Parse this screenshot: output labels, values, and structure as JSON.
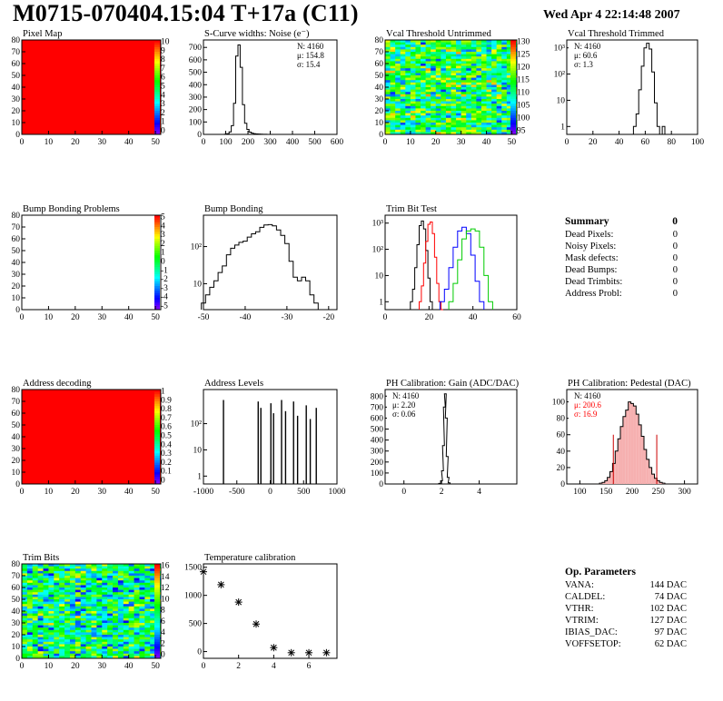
{
  "header": {
    "title": "M0715-070404.15:04 T+17a (C11)",
    "date": "Wed Apr  4 22:14:48 2007"
  },
  "summary": {
    "title": "Summary",
    "total": "0",
    "items": [
      {
        "label": "Dead Pixels:",
        "value": "0"
      },
      {
        "label": "Noisy Pixels:",
        "value": "0"
      },
      {
        "label": "Mask defects:",
        "value": "0"
      },
      {
        "label": "Dead Bumps:",
        "value": "0"
      },
      {
        "label": "Dead Trimbits:",
        "value": "0"
      },
      {
        "label": "Address Probl:",
        "value": "0"
      }
    ]
  },
  "op_parameters": {
    "title": "Op. Parameters",
    "items": [
      {
        "label": "VANA:",
        "value": "144 DAC"
      },
      {
        "label": "CALDEL:",
        "value": "74 DAC"
      },
      {
        "label": "VTHR:",
        "value": "102 DAC"
      },
      {
        "label": "VTRIM:",
        "value": "127 DAC"
      },
      {
        "label": "IBIAS_DAC:",
        "value": "97 DAC"
      },
      {
        "label": "VOFFSETOP:",
        "value": "62 DAC"
      }
    ]
  },
  "chart_data": [
    {
      "id": "pixel_map",
      "type": "heatmap",
      "title": "Pixel Map",
      "xlim": [
        0,
        52
      ],
      "ylim": [
        0,
        80
      ],
      "xticks": [
        0,
        10,
        20,
        30,
        40,
        50
      ],
      "yticks": [
        0,
        10,
        20,
        30,
        40,
        50,
        60,
        70,
        80
      ],
      "fill": "uniform",
      "color": "#ff0000",
      "palette_labels": [
        "10",
        "9",
        "8",
        "7",
        "6",
        "5",
        "4",
        "3",
        "2",
        "1",
        "0"
      ]
    },
    {
      "id": "scurve_noise",
      "type": "histogram",
      "title": "S-Curve widths: Noise (e⁻)",
      "xlim": [
        0,
        600
      ],
      "ylim": [
        0,
        760
      ],
      "xticks": [
        0,
        100,
        200,
        300,
        400,
        500,
        600
      ],
      "yticks": [
        0,
        100,
        200,
        300,
        400,
        500,
        600,
        700
      ],
      "x": [
        100,
        110,
        120,
        130,
        140,
        150,
        160,
        170,
        180,
        190,
        200,
        210,
        220,
        230,
        240,
        250,
        260,
        270,
        280,
        290,
        300
      ],
      "values": [
        2,
        6,
        20,
        70,
        250,
        630,
        720,
        540,
        240,
        90,
        40,
        18,
        10,
        6,
        4,
        3,
        2,
        1,
        1,
        0,
        0
      ],
      "stats": [
        "N: 4160",
        "μ: 154.8",
        "σ: 15.4"
      ]
    },
    {
      "id": "vcal_untrimmed",
      "type": "heatmap",
      "title": "Vcal Threshold Untrimmed",
      "xlim": [
        0,
        52
      ],
      "ylim": [
        0,
        80
      ],
      "xticks": [
        0,
        10,
        20,
        30,
        40,
        50
      ],
      "yticks": [
        0,
        10,
        20,
        30,
        40,
        50,
        60,
        70,
        80
      ],
      "fill": "noise",
      "mean_level": 0.5,
      "palette_labels": [
        "130",
        "125",
        "120",
        "115",
        "110",
        "105",
        "100",
        "95"
      ]
    },
    {
      "id": "vcal_trimmed",
      "type": "histogram",
      "title": "Vcal Threshold Trimmed",
      "xlim": [
        0,
        100
      ],
      "log": true,
      "ylim_log": [
        0.5,
        2000
      ],
      "xticks": [
        0,
        20,
        40,
        60,
        80,
        100
      ],
      "yticks": [
        1,
        10,
        100,
        1000
      ],
      "x": [
        52,
        54,
        56,
        58,
        60,
        62,
        64,
        66,
        68,
        70,
        72,
        74,
        76
      ],
      "values": [
        1,
        3,
        25,
        200,
        1000,
        1500,
        900,
        120,
        8,
        1,
        0,
        1,
        0
      ],
      "stats": [
        "N: 4160",
        "μ: 60.6",
        "σ:  1.3"
      ]
    },
    {
      "id": "bump_problems",
      "type": "heatmap",
      "title": "Bump Bonding Problems",
      "xlim": [
        0,
        52
      ],
      "ylim": [
        0,
        80
      ],
      "xticks": [
        0,
        10,
        20,
        30,
        40,
        50
      ],
      "yticks": [
        0,
        10,
        20,
        30,
        40,
        50,
        60,
        70,
        80
      ],
      "fill": "empty",
      "palette_labels": [
        "5",
        "4",
        "3",
        "2",
        "1",
        "0",
        "-1",
        "-2",
        "-3",
        "-4",
        "-5"
      ]
    },
    {
      "id": "bump_bonding",
      "type": "histogram",
      "title": "Bump Bonding",
      "xlim": [
        -50,
        -18
      ],
      "log": true,
      "ylim_log": [
        2,
        700
      ],
      "xticks": [
        -50,
        -40,
        -30,
        -20
      ],
      "yticks": [
        10,
        100
      ],
      "x": [
        -50,
        -49,
        -48,
        -47,
        -46,
        -45,
        -44,
        -43,
        -42,
        -41,
        -40,
        -39,
        -38,
        -37,
        -36,
        -35,
        -34,
        -33,
        -32,
        -31,
        -30,
        -29,
        -28,
        -27,
        -26,
        -25,
        -24,
        -23,
        -22,
        -21,
        -20
      ],
      "values": [
        3,
        5,
        8,
        12,
        20,
        30,
        60,
        90,
        110,
        130,
        140,
        180,
        220,
        250,
        330,
        380,
        390,
        360,
        280,
        200,
        120,
        40,
        15,
        12,
        15,
        12,
        5,
        3,
        2,
        1,
        1
      ],
      "stats": []
    },
    {
      "id": "trim_bit_test",
      "type": "histogram",
      "title": "Trim Bit Test",
      "xlim": [
        0,
        60
      ],
      "log": true,
      "ylim_log": [
        0.5,
        2000
      ],
      "xticks": [
        0,
        20,
        40,
        60
      ],
      "yticks": [
        1,
        10,
        100,
        1000
      ],
      "series": [
        {
          "color": "#000000",
          "x": [
            12,
            13,
            14,
            15,
            16,
            17,
            18,
            19,
            20,
            21,
            22
          ],
          "values": [
            1,
            3,
            20,
            150,
            800,
            1200,
            600,
            90,
            8,
            1,
            0
          ]
        },
        {
          "color": "#ff0000",
          "x": [
            16,
            17,
            18,
            19,
            20,
            21,
            22,
            23,
            24,
            25,
            26
          ],
          "values": [
            1,
            4,
            30,
            200,
            900,
            1100,
            400,
            50,
            5,
            1,
            0
          ]
        },
        {
          "color": "#0000ff",
          "x": [
            26,
            28,
            30,
            32,
            34,
            36,
            38,
            40,
            42,
            44
          ],
          "values": [
            1,
            3,
            20,
            120,
            500,
            700,
            400,
            60,
            6,
            1
          ]
        },
        {
          "color": "#00cc00",
          "x": [
            30,
            32,
            34,
            36,
            38,
            40,
            42,
            44,
            46,
            48
          ],
          "values": [
            1,
            5,
            40,
            250,
            500,
            600,
            500,
            120,
            10,
            1
          ]
        }
      ],
      "stats": []
    },
    {
      "id": "address_decoding",
      "type": "heatmap",
      "title": "Address decoding",
      "xlim": [
        0,
        52
      ],
      "ylim": [
        0,
        80
      ],
      "xticks": [
        0,
        10,
        20,
        30,
        40,
        50
      ],
      "yticks": [
        0,
        10,
        20,
        30,
        40,
        50,
        60,
        70,
        80
      ],
      "fill": "uniform",
      "color": "#ff0000",
      "palette_labels": [
        "1",
        "0.9",
        "0.8",
        "0.7",
        "0.6",
        "0.5",
        "0.4",
        "0.3",
        "0.2",
        "0.1",
        "0"
      ]
    },
    {
      "id": "address_levels",
      "type": "histogram",
      "title": "Address Levels",
      "xlim": [
        -1000,
        1000
      ],
      "log": true,
      "ylim_log": [
        0.5,
        2000
      ],
      "xticks": [
        -1000,
        -500,
        0,
        500,
        1000
      ],
      "yticks": [
        1,
        10,
        100
      ],
      "spikes": [
        {
          "x": -700,
          "v": 800
        },
        {
          "x": -180,
          "v": 700
        },
        {
          "x": -140,
          "v": 400
        },
        {
          "x": 10,
          "v": 600
        },
        {
          "x": 50,
          "v": 250
        },
        {
          "x": 170,
          "v": 800
        },
        {
          "x": 230,
          "v": 300
        },
        {
          "x": 350,
          "v": 700
        },
        {
          "x": 410,
          "v": 200
        },
        {
          "x": 540,
          "v": 500
        },
        {
          "x": 600,
          "v": 150
        },
        {
          "x": 690,
          "v": 400
        }
      ],
      "stats": []
    },
    {
      "id": "ph_gain",
      "type": "histogram",
      "title": "PH Calibration: Gain (ADC/DAC)",
      "xlim": [
        -1,
        6
      ],
      "ylim": [
        0,
        860
      ],
      "xticks": [
        0,
        2,
        4
      ],
      "yticks": [
        0,
        100,
        200,
        300,
        400,
        500,
        600,
        700,
        800
      ],
      "x": [
        1.9,
        2.0,
        2.05,
        2.1,
        2.15,
        2.2,
        2.25,
        2.3,
        2.35,
        2.4,
        2.5
      ],
      "values": [
        5,
        30,
        120,
        350,
        700,
        820,
        600,
        250,
        60,
        10,
        0
      ],
      "stats": [
        "N: 4160",
        "μ: 2.20",
        "σ: 0.06"
      ]
    },
    {
      "id": "ph_pedestal",
      "type": "histogram",
      "title": "PH Calibration: Pedestal (DAC)",
      "xlim": [
        75,
        325
      ],
      "ylim": [
        0,
        115
      ],
      "xticks": [
        100,
        150,
        200,
        250,
        300
      ],
      "yticks": [
        0,
        20,
        40,
        60,
        80,
        100
      ],
      "x": [
        140,
        145,
        150,
        155,
        160,
        165,
        170,
        175,
        180,
        185,
        190,
        195,
        200,
        205,
        210,
        215,
        220,
        225,
        230,
        235,
        240,
        245,
        250,
        255,
        260,
        265
      ],
      "values": [
        1,
        2,
        4,
        8,
        15,
        25,
        40,
        55,
        70,
        82,
        90,
        100,
        98,
        95,
        85,
        72,
        58,
        42,
        30,
        20,
        12,
        7,
        4,
        2,
        1,
        0
      ],
      "markers": [
        164,
        247
      ],
      "stats": [
        "N: 4160",
        "μ: 200.6",
        "σ: 16.9"
      ],
      "stats_colors": [
        "#000000",
        "#ff0000",
        "#ff0000"
      ]
    },
    {
      "id": "trim_bits",
      "type": "heatmap",
      "title": "Trim Bits",
      "xlim": [
        0,
        52
      ],
      "ylim": [
        0,
        80
      ],
      "xticks": [
        0,
        10,
        20,
        30,
        40,
        50
      ],
      "yticks": [
        0,
        10,
        20,
        30,
        40,
        50,
        60,
        70,
        80
      ],
      "fill": "noise",
      "mean_level": 0.45,
      "palette_labels": [
        "16",
        "14",
        "12",
        "10",
        "8",
        "6",
        "4",
        "2",
        "0"
      ]
    },
    {
      "id": "temperature_calibration",
      "type": "scatter",
      "title": "Temperature calibration",
      "xlim": [
        0,
        7.6
      ],
      "ylim": [
        -120,
        1560
      ],
      "xticks": [
        0,
        2,
        4,
        6
      ],
      "yticks": [
        0,
        500,
        1000,
        1500
      ],
      "x": [
        0,
        1,
        2,
        3,
        4,
        5,
        6,
        7
      ],
      "values": [
        1420,
        1190,
        880,
        490,
        70,
        -20,
        -20,
        -20
      ],
      "stats": []
    }
  ]
}
